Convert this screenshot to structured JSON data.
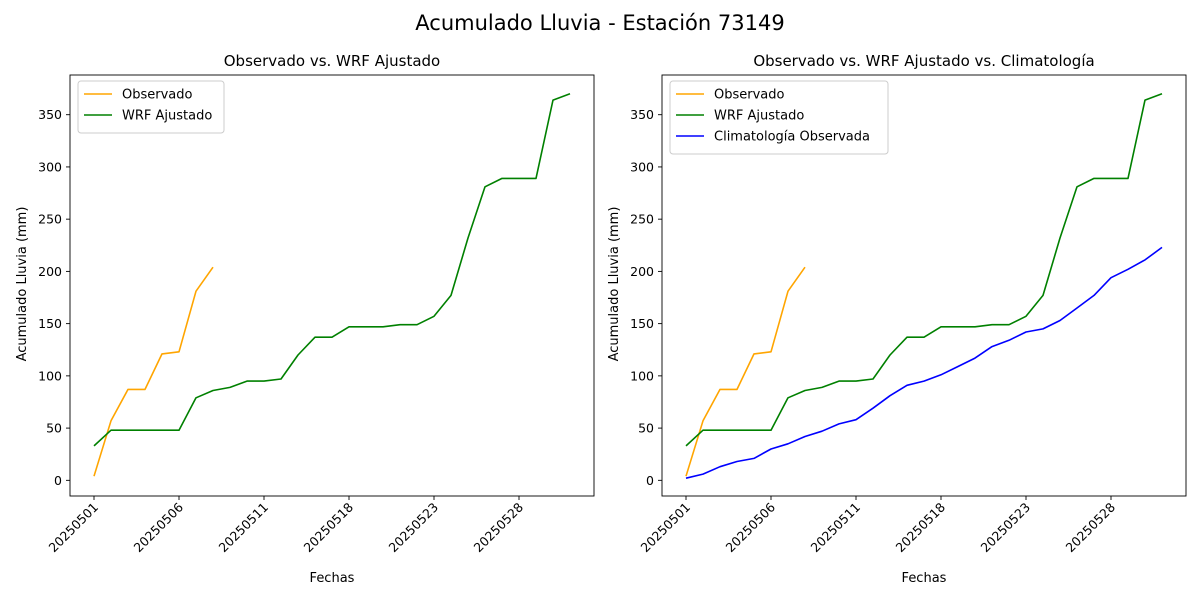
{
  "figure": {
    "suptitle": "Acumulado Lluvia - Estación 73149"
  },
  "colors": {
    "observado": "#ffa500",
    "wrf": "#008000",
    "climatologia": "#0000ff"
  },
  "chart_data": [
    {
      "type": "line",
      "title": "Observado vs. WRF Ajustado",
      "xlabel": "Fechas",
      "ylabel": "Acumulado Lluvia (mm)",
      "x_tick_labels": [
        "20250501",
        "20250506",
        "20250511",
        "20250518",
        "20250523",
        "20250528"
      ],
      "y_ticks": [
        0,
        50,
        100,
        150,
        200,
        250,
        300,
        350
      ],
      "ylim": [
        -15,
        388
      ],
      "legend": "top-left",
      "series": [
        {
          "name": "Observado",
          "color_key": "observado",
          "values": [
            4,
            57,
            87,
            87,
            121,
            123,
            181,
            204
          ]
        },
        {
          "name": "WRF Ajustado",
          "color_key": "wrf",
          "values": [
            33,
            48,
            48,
            48,
            48,
            48,
            79,
            86,
            89,
            95,
            95,
            97,
            120,
            137,
            137,
            147,
            147,
            147,
            149,
            149,
            157,
            177,
            232,
            281,
            289,
            289,
            289,
            364,
            370
          ]
        }
      ]
    },
    {
      "type": "line",
      "title": "Observado vs. WRF Ajustado vs. Climatología",
      "xlabel": "Fechas",
      "ylabel": "Acumulado Lluvia (mm)",
      "x_tick_labels": [
        "20250501",
        "20250506",
        "20250511",
        "20250518",
        "20250523",
        "20250528"
      ],
      "y_ticks": [
        0,
        50,
        100,
        150,
        200,
        250,
        300,
        350
      ],
      "ylim": [
        -15,
        388
      ],
      "legend": "top-left",
      "series": [
        {
          "name": "Observado",
          "color_key": "observado",
          "values": [
            4,
            57,
            87,
            87,
            121,
            123,
            181,
            204
          ]
        },
        {
          "name": "WRF Ajustado",
          "color_key": "wrf",
          "values": [
            33,
            48,
            48,
            48,
            48,
            48,
            79,
            86,
            89,
            95,
            95,
            97,
            120,
            137,
            137,
            147,
            147,
            147,
            149,
            149,
            157,
            177,
            232,
            281,
            289,
            289,
            289,
            364,
            370
          ]
        },
        {
          "name": "Climatología Observada",
          "color_key": "climatologia",
          "values": [
            2,
            6,
            13,
            18,
            21,
            30,
            35,
            42,
            47,
            54,
            58,
            69,
            81,
            91,
            95,
            101,
            109,
            117,
            128,
            134,
            142,
            145,
            153,
            165,
            177,
            194,
            202,
            211,
            223
          ]
        }
      ]
    }
  ]
}
